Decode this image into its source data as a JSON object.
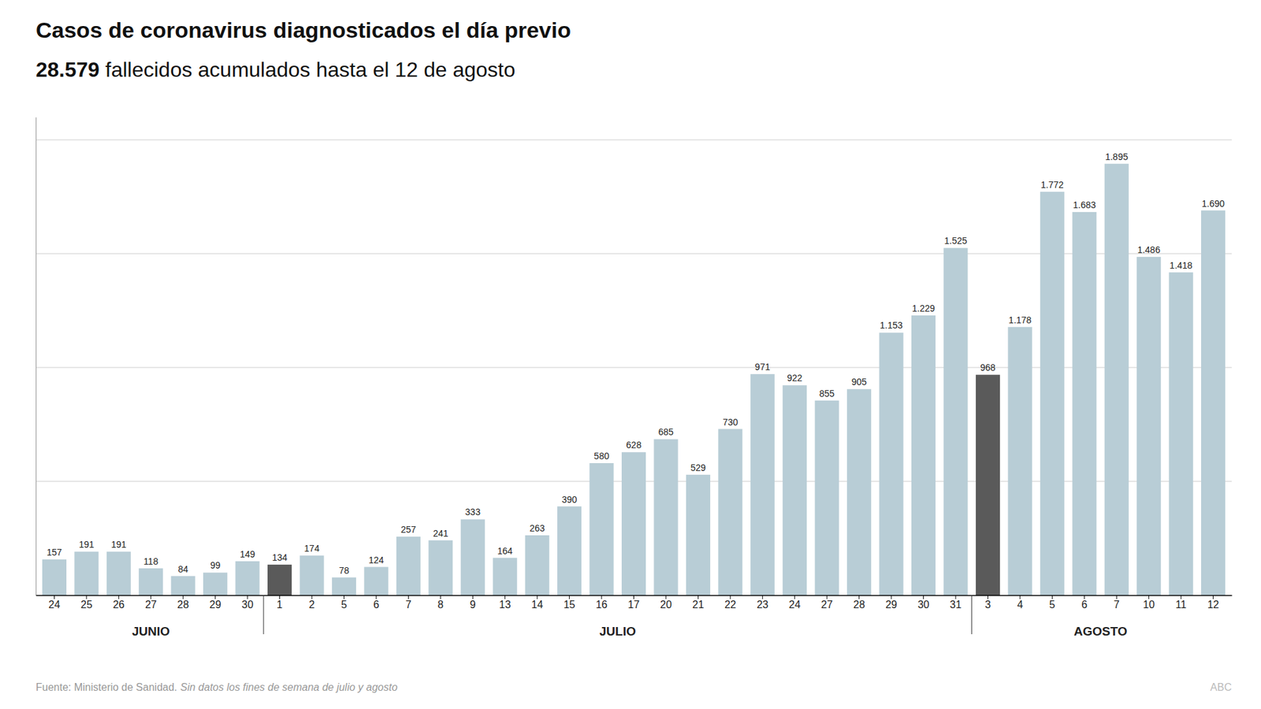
{
  "chart_data": {
    "type": "bar",
    "title": "Casos de coronavirus diagnosticados el día previo",
    "subtitle": "28.579 fallecidos acumulados hasta el 12 de agosto",
    "annotations": [
      "Fuente: Ministerio de Sanidad.",
      "Sin datos los fines de semana de julio y agosto",
      "ABC"
    ],
    "categories": [
      "24",
      "25",
      "26",
      "27",
      "28",
      "29",
      "30",
      "1",
      "2",
      "5",
      "6",
      "7",
      "8",
      "9",
      "13",
      "14",
      "15",
      "16",
      "17",
      "20",
      "21",
      "22",
      "23",
      "24",
      "27",
      "28",
      "29",
      "30",
      "31",
      "3",
      "4",
      "5",
      "6",
      "7",
      "10",
      "11",
      "12"
    ],
    "groups": [
      {
        "label": "JUNIO",
        "start": 0,
        "end": 7
      },
      {
        "label": "JULIO",
        "start": 7,
        "end": 29
      },
      {
        "label": "AGOSTO",
        "start": 29,
        "end": 37
      }
    ],
    "values": [
      157,
      191,
      191,
      118,
      84,
      99,
      149,
      134,
      174,
      78,
      124,
      257,
      241,
      333,
      164,
      263,
      390,
      580,
      628,
      685,
      529,
      730,
      971,
      922,
      855,
      905,
      1153,
      1229,
      1525,
      968,
      1178,
      1772,
      1683,
      1895,
      1486,
      1418,
      1690
    ],
    "value_labels": [
      "157",
      "191",
      "191",
      "118",
      "84",
      "99",
      "149",
      "134",
      "174",
      "78",
      "124",
      "257",
      "241",
      "333",
      "164",
      "263",
      "390",
      "580",
      "628",
      "685",
      "529",
      "730",
      "971",
      "922",
      "855",
      "905",
      "1.153",
      "1.229",
      "1.525",
      "968",
      "1.178",
      "1.772",
      "1.683",
      "1.895",
      "1.486",
      "1.418",
      "1.690"
    ],
    "colors": [
      "#b8cdd6",
      "#b8cdd6",
      "#b8cdd6",
      "#b8cdd6",
      "#b8cdd6",
      "#b8cdd6",
      "#b8cdd6",
      "#5a5a5a",
      "#b8cdd6",
      "#b8cdd6",
      "#b8cdd6",
      "#b8cdd6",
      "#b8cdd6",
      "#b8cdd6",
      "#b8cdd6",
      "#b8cdd6",
      "#b8cdd6",
      "#b8cdd6",
      "#b8cdd6",
      "#b8cdd6",
      "#b8cdd6",
      "#b8cdd6",
      "#b8cdd6",
      "#b8cdd6",
      "#b8cdd6",
      "#b8cdd6",
      "#b8cdd6",
      "#b8cdd6",
      "#b8cdd6",
      "#5a5a5a",
      "#b8cdd6",
      "#b8cdd6",
      "#b8cdd6",
      "#b8cdd6",
      "#b8cdd6",
      "#b8cdd6",
      "#b8cdd6"
    ],
    "ylim": [
      0,
      2100
    ],
    "yticks": [
      500,
      1000,
      1500,
      2000
    ],
    "grid": true,
    "tick_labels": "x",
    "data_labels": true
  }
}
